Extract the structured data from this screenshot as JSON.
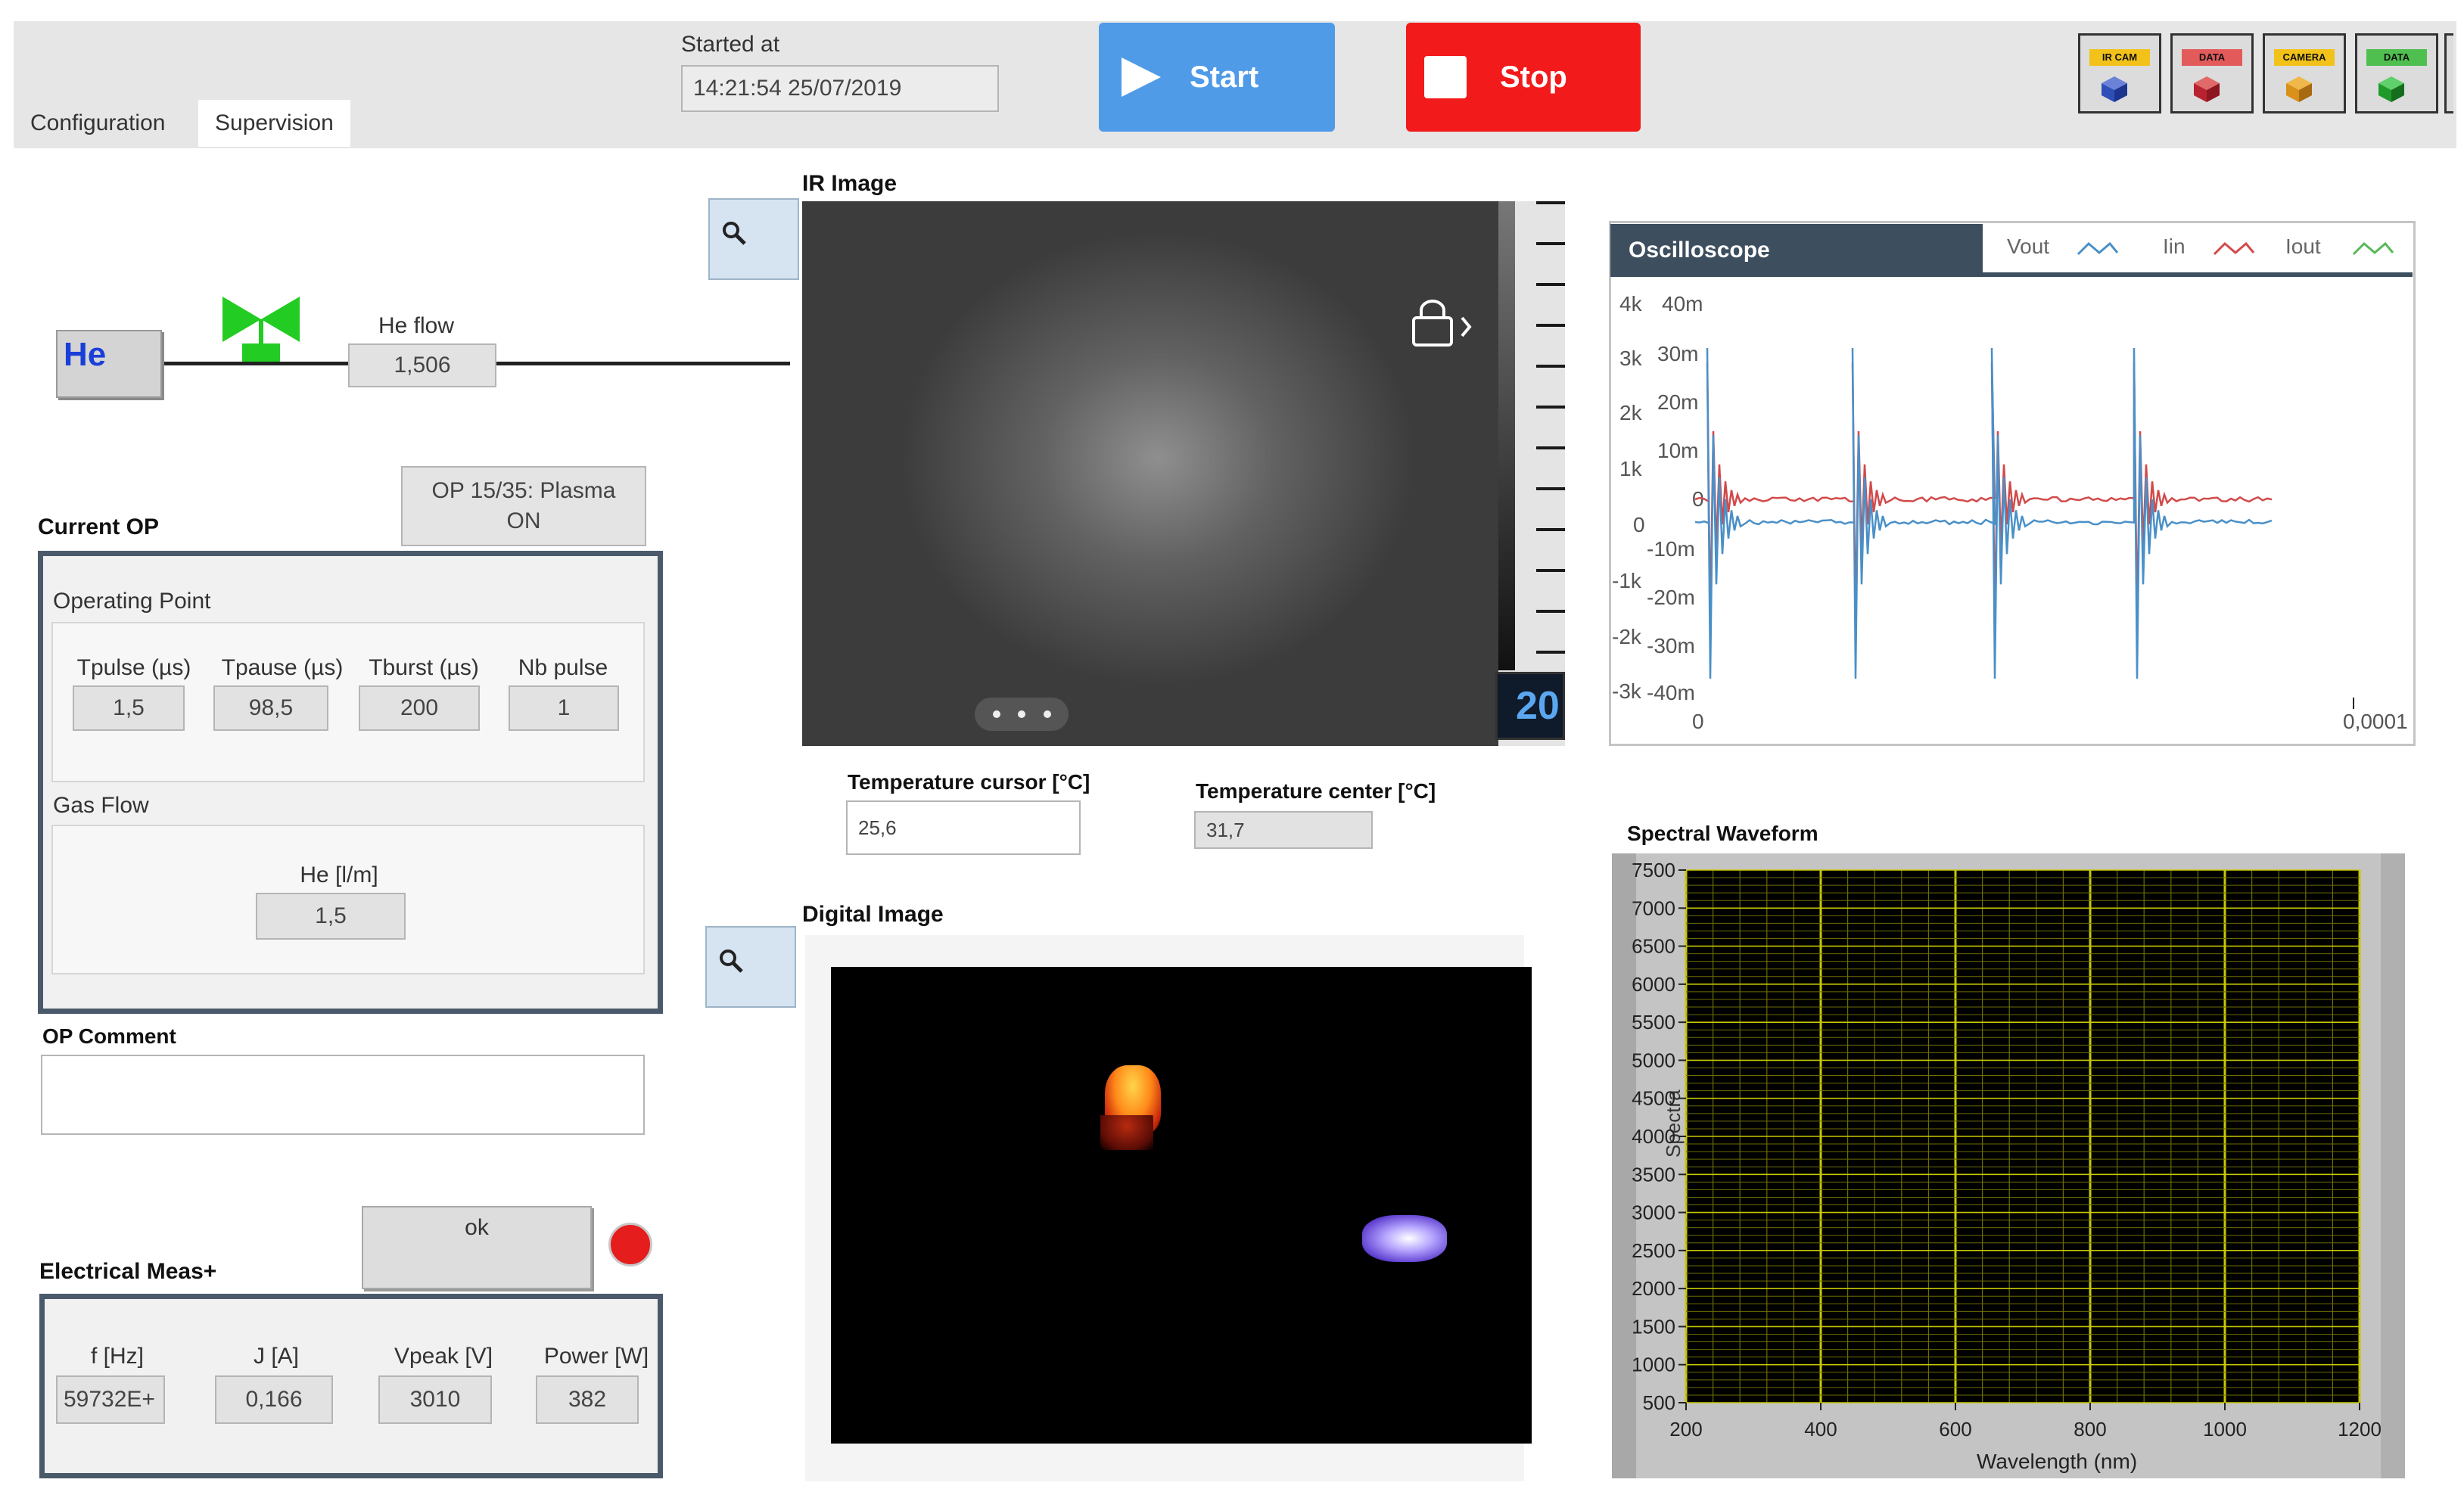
{
  "tabs": [
    "Configuration",
    "Supervision"
  ],
  "started": {
    "label": "Started at",
    "value": "14:21:54 25/07/2019"
  },
  "buttons": {
    "start": "Start",
    "stop": "Stop",
    "ok": "ok"
  },
  "modules": [
    {
      "label": "IR CAM",
      "color": "#f2c21b",
      "cube": "#2f4fb8"
    },
    {
      "label": "DATA",
      "color": "#e25a5a",
      "cube": "#b8232f"
    },
    {
      "label": "CAMERA",
      "color": "#f2c21b",
      "cube": "#d8901a"
    },
    {
      "label": "DATA",
      "color": "#4fc04f",
      "cube": "#1f9a2a"
    }
  ],
  "gas_line": {
    "source": "He",
    "flow_label": "He flow",
    "flow_value": "1,506"
  },
  "op_status": "OP 15/35: Plasma ON",
  "current_op": {
    "title": "Current OP",
    "operating_point_label": "Operating Point",
    "params": [
      {
        "label": "Tpulse (µs)",
        "value": "1,5"
      },
      {
        "label": "Tpause (µs)",
        "value": "98,5"
      },
      {
        "label": "Tburst (µs)",
        "value": "200"
      },
      {
        "label": "Nb pulse",
        "value": "1"
      }
    ],
    "gas_flow_label": "Gas Flow",
    "he_label": "He [l/m]",
    "he_value": "1,5"
  },
  "op_comment": {
    "label": "OP Comment",
    "value": ""
  },
  "electrical": {
    "title": "Electrical Meas+",
    "fields": [
      {
        "label": "f [Hz]",
        "value": "59732E+"
      },
      {
        "label": "J [A]",
        "value": "0,166"
      },
      {
        "label": "Vpeak [V]",
        "value": "3010"
      },
      {
        "label": "Power [W]",
        "value": "382"
      }
    ]
  },
  "ir_image": {
    "title": "IR Image",
    "scale_readout": "20"
  },
  "temperature": {
    "cursor_label": "Temperature cursor [°C]",
    "cursor_value": "25,6",
    "center_label": "Temperature center [°C]",
    "center_value": "31,7"
  },
  "digital_image": {
    "title": "Digital Image"
  },
  "oscilloscope": {
    "title": "Oscilloscope",
    "legend": [
      {
        "name": "Vout",
        "color": "#4a90c8"
      },
      {
        "name": "Iin",
        "color": "#d24a4a"
      },
      {
        "name": "Iout",
        "color": "#57b957"
      }
    ],
    "left_ticks": [
      "4k",
      "3k",
      "2k",
      "1k",
      "0",
      "-1k",
      "-2k",
      "-3k"
    ],
    "right_ticks": [
      "40m",
      "30m",
      "20m",
      "10m",
      "0",
      "-10m",
      "-20m",
      "-30m",
      "-40m"
    ],
    "x_ticks": [
      "0",
      "0,0001"
    ]
  },
  "chart_data": {
    "type": "line",
    "title": "Spectral Waveform",
    "xlabel": "Wavelength (nm)",
    "ylabel": "Spectra",
    "xlim": [
      200,
      1200
    ],
    "ylim": [
      500,
      7500
    ],
    "x_ticks": [
      "200",
      "400",
      "600",
      "800",
      "1000",
      "1200"
    ],
    "y_ticks": [
      "7500",
      "7000",
      "6500",
      "6000",
      "5500",
      "5000",
      "4500",
      "4000",
      "3500",
      "3000",
      "2500",
      "2000",
      "1500",
      "1000",
      "500"
    ],
    "grid": true,
    "series": []
  },
  "colors": {
    "start": "#4f9be8",
    "stop": "#f21a1a",
    "indicator": "#e51d1d",
    "valve": "#22cc22",
    "spectral_grid": "#d8d800"
  }
}
